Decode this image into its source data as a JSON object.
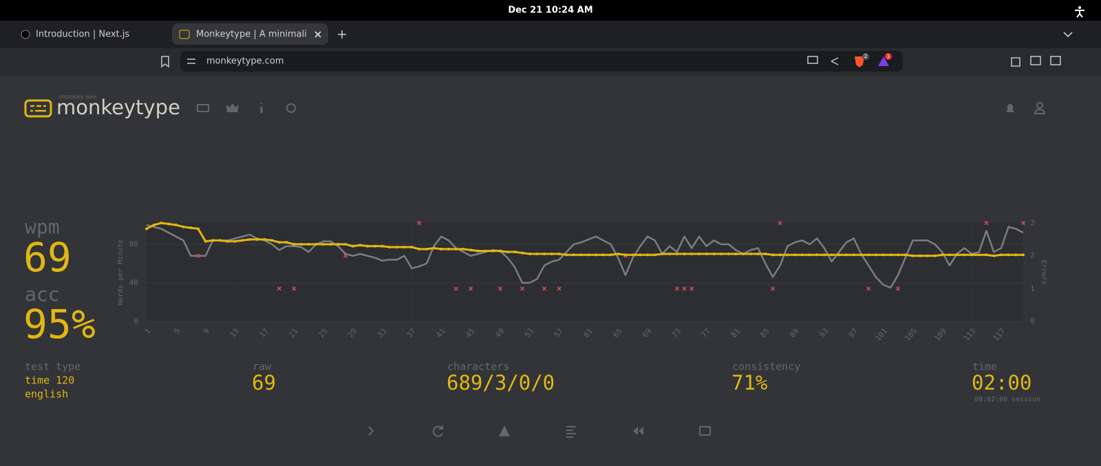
{
  "system_bar": {
    "datetime": "Dec 21  10:24 AM"
  },
  "tabs": [
    {
      "title": "Introduction | Next.js"
    },
    {
      "title": "Monkeytype | A minimali"
    }
  ],
  "address_bar": {
    "url": "monkeytype.com",
    "shields_count": "2",
    "rewards_count": "1"
  },
  "header": {
    "tagline": "monkey see",
    "logo": "monkeytype"
  },
  "stats": {
    "wpm_label": "wpm",
    "wpm": "69",
    "acc_label": "acc",
    "acc": "95%"
  },
  "chart_data": {
    "type": "line",
    "y_label": "Words per Minute",
    "y2_label": "Errors",
    "x": [
      1,
      2,
      3,
      4,
      5,
      6,
      7,
      8,
      9,
      10,
      11,
      12,
      13,
      14,
      15,
      16,
      17,
      18,
      19,
      20,
      21,
      22,
      23,
      24,
      25,
      26,
      27,
      28,
      29,
      30,
      31,
      32,
      33,
      34,
      35,
      36,
      37,
      38,
      39,
      40,
      41,
      42,
      43,
      44,
      45,
      46,
      47,
      48,
      49,
      50,
      51,
      52,
      53,
      54,
      55,
      56,
      57,
      58,
      59,
      60,
      61,
      62,
      63,
      64,
      65,
      66,
      67,
      68,
      69,
      70,
      71,
      72,
      73,
      74,
      75,
      76,
      77,
      78,
      79,
      80,
      81,
      82,
      83,
      84,
      85,
      86,
      87,
      88,
      89,
      90,
      91,
      92,
      93,
      94,
      95,
      96,
      97,
      98,
      99,
      100,
      101,
      102,
      103,
      104,
      105,
      106,
      107,
      108,
      109,
      110,
      111,
      112,
      113,
      114,
      115,
      116,
      117,
      118,
      119,
      120
    ],
    "series": [
      {
        "color": "#e2b714",
        "values": [
          96,
          100,
          102,
          101,
          100,
          98,
          97,
          96,
          83,
          84,
          84,
          83,
          83,
          84,
          85,
          85,
          85,
          84,
          82,
          82,
          80,
          80,
          80,
          80,
          80,
          80,
          80,
          80,
          78,
          79,
          78,
          78,
          78,
          77,
          77,
          77,
          77,
          75,
          75,
          76,
          75,
          75,
          75,
          75,
          74,
          73,
          73,
          73,
          73,
          72,
          72,
          71,
          70,
          70,
          70,
          70,
          70,
          69,
          69,
          69,
          69,
          69,
          69,
          69,
          70,
          69,
          69,
          69,
          69,
          69,
          70,
          70,
          70,
          70,
          70,
          70,
          70,
          70,
          70,
          70,
          70,
          70,
          70,
          70,
          70,
          69,
          69,
          69,
          69,
          69,
          69,
          69,
          69,
          69,
          69,
          69,
          69,
          69,
          69,
          69,
          69,
          69,
          69,
          69,
          68,
          68,
          68,
          68,
          69,
          69,
          69,
          69,
          69,
          69,
          69,
          68,
          69,
          69,
          69,
          69
        ]
      },
      {
        "color": "#7c7d80",
        "values": [
          100,
          98,
          96,
          92,
          88,
          84,
          68,
          68,
          68,
          84,
          84,
          84,
          86,
          88,
          90,
          86,
          84,
          80,
          74,
          78,
          78,
          77,
          72,
          80,
          83,
          83,
          78,
          70,
          68,
          70,
          68,
          66,
          63,
          64,
          64,
          68,
          55,
          57,
          60,
          78,
          88,
          84,
          76,
          72,
          68,
          70,
          72,
          74,
          73,
          66,
          56,
          40,
          40,
          44,
          58,
          62,
          64,
          72,
          80,
          82,
          85,
          88,
          84,
          80,
          66,
          48,
          66,
          78,
          88,
          84,
          70,
          78,
          72,
          88,
          76,
          88,
          78,
          84,
          80,
          80,
          74,
          70,
          74,
          76,
          60,
          46,
          58,
          78,
          82,
          84,
          80,
          86,
          76,
          62,
          72,
          82,
          86,
          70,
          58,
          46,
          38,
          35,
          48,
          66,
          84,
          84,
          84,
          80,
          72,
          58,
          70,
          76,
          70,
          72,
          94,
          72,
          76,
          98,
          96,
          92
        ]
      },
      {
        "color": "#ca4754",
        "axis": "y2",
        "x": [
          8,
          19,
          21,
          28,
          38,
          43,
          45,
          49,
          52,
          55,
          57,
          66,
          73,
          74,
          75,
          86,
          87,
          99,
          103,
          115,
          120
        ],
        "values": [
          2,
          1,
          1,
          2,
          3,
          1,
          1,
          1,
          1,
          1,
          1,
          2,
          1,
          1,
          1,
          1,
          3,
          1,
          1,
          3,
          3
        ]
      }
    ],
    "xlim": [
      1,
      120
    ],
    "xticks": [
      1,
      5,
      9,
      13,
      17,
      21,
      25,
      29,
      33,
      37,
      41,
      45,
      49,
      53,
      57,
      61,
      65,
      69,
      73,
      77,
      81,
      85,
      89,
      93,
      97,
      101,
      105,
      109,
      113,
      117
    ],
    "ylim": [
      0,
      102
    ],
    "yticks": [
      0,
      40,
      80
    ],
    "y2lim": [
      0,
      3
    ],
    "y2ticks": [
      0,
      1,
      2,
      3
    ],
    "grid": true
  },
  "details": {
    "test_type_label": "test type",
    "test_type": [
      "time 120",
      "english"
    ],
    "raw_label": "raw",
    "raw": "69",
    "characters_label": "characters",
    "characters": "689/3/0/0",
    "consistency_label": "consistency",
    "consistency": "71%",
    "time_label": "time",
    "time": "02:00",
    "session": "00:02:00 session"
  }
}
